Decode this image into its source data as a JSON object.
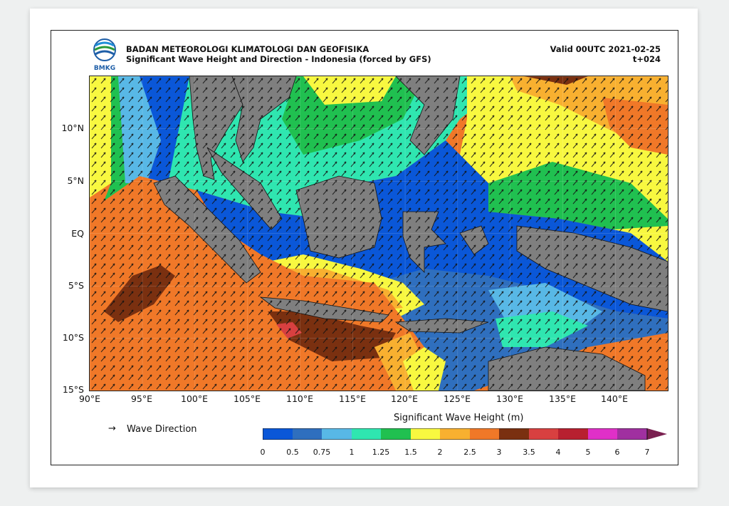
{
  "header": {
    "agency": "BADAN METEOROLOGI KLIMATOLOGI DAN GEOFISIKA",
    "product": "Significant Wave Height and Direction - Indonesia (forced by GFS)",
    "valid": "Valid 00UTC 2021-02-25",
    "lead": "t+024",
    "logo_text": "BMKG"
  },
  "axes": {
    "lat_labels": [
      "10°N",
      "5°N",
      "EQ",
      "5°S",
      "10°S",
      "15°S"
    ],
    "lon_labels": [
      "90°E",
      "95°E",
      "100°E",
      "105°E",
      "110°E",
      "115°E",
      "120°E",
      "125°E",
      "130°E",
      "135°E",
      "140°E"
    ]
  },
  "legend": {
    "wave_direction_label": "Wave Direction",
    "colorbar_title": "Significant Wave Height (m)",
    "colorbar_ticks": [
      "0",
      "0.5",
      "0.75",
      "1",
      "1.25",
      "1.5",
      "2",
      "2.5",
      "3",
      "3.5",
      "4",
      "5",
      "6",
      "7"
    ],
    "colors": [
      "#0a57d8",
      "#2f6fbe",
      "#58b8e6",
      "#2fe6b0",
      "#20c050",
      "#f8f840",
      "#f8b030",
      "#f07828",
      "#7a3010",
      "#d84040",
      "#b82030",
      "#e030c8",
      "#a030a0"
    ]
  }
}
